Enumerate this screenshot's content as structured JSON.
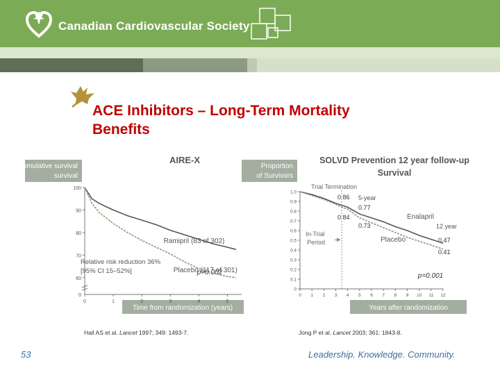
{
  "header": {
    "org_name": "Canadian Cardiovascular Society",
    "color": "#7cab56"
  },
  "slide": {
    "title_line1": "ACE Inhibitors – Long-Term Mortality",
    "title_line2": "Benefits",
    "number": "53",
    "tagline": "Leadership. Knowledge. Community."
  },
  "references": {
    "left_author": "Hall AS et al. ",
    "left_journal": "Lancet",
    "left_details": " 1997; 349: 1493-7.",
    "right_author": "Jong P et al. ",
    "right_journal": "Lancet",
    "right_details": " 2003; 361: 1843-8."
  },
  "chart_data": [
    {
      "type": "line",
      "title": "AIRE-X",
      "ylabel": "% cumulative survival",
      "xlabel": "Time from randomization (years)",
      "x_ticks": [
        0,
        1,
        2,
        3,
        4,
        5
      ],
      "y_ticks": [
        100,
        90,
        80,
        70,
        60
      ],
      "y_zero_tick": "0",
      "xlim": [
        0,
        5.5
      ],
      "ylim": [
        55,
        100
      ],
      "series": [
        {
          "name": "Ramipril (83 of 302)",
          "color": "#555555",
          "x": [
            0,
            0.25,
            0.5,
            0.75,
            1,
            1.5,
            2,
            2.5,
            3,
            3.5,
            4,
            4.5,
            5,
            5.3
          ],
          "y": [
            100,
            95,
            93,
            91.5,
            90,
            87.5,
            85.5,
            83.5,
            81,
            79,
            77,
            75,
            73.5,
            72.5
          ]
        },
        {
          "name": "Placebo (117 of 301)",
          "color": "#8a9a7a",
          "x": [
            0,
            0.25,
            0.5,
            0.75,
            1,
            1.5,
            2,
            2.5,
            3,
            3.5,
            4,
            4.5,
            5,
            5.3
          ],
          "y": [
            100,
            93,
            89,
            86.5,
            84,
            80,
            76.5,
            73.5,
            70.5,
            67,
            64,
            62,
            60.5,
            60
          ]
        }
      ],
      "annotations": {
        "rrr_line1": "Relative risk reduction 36%",
        "rrr_line2": "[95% CI 15–52%]",
        "p_value": "p=0.002"
      }
    },
    {
      "type": "line",
      "title_line1": "SOLVD Prevention 12 year follow-up",
      "title_line2": "Survival",
      "ylabel_line1": "Proportion",
      "ylabel_line2": "of Survivors",
      "xlabel": "Years after randomization",
      "x_ticks": [
        0,
        1,
        2,
        3,
        4,
        5,
        6,
        7,
        8,
        9,
        10,
        11,
        12
      ],
      "y_ticks": [
        "1.0",
        "0.9",
        "0.8",
        "0.7",
        "0.6",
        "0.5",
        "0.4",
        "0.3",
        "0.2",
        "0.1",
        "0"
      ],
      "xlim": [
        0,
        12
      ],
      "ylim": [
        0,
        1.0
      ],
      "trial_termination_year": 3.5,
      "series": [
        {
          "name": "Enalapril",
          "color": "#555555",
          "x": [
            0,
            1,
            2,
            3,
            3.5,
            4,
            5,
            6,
            7,
            8,
            9,
            10,
            11,
            12
          ],
          "y": [
            1.0,
            0.97,
            0.93,
            0.88,
            0.86,
            0.84,
            0.77,
            0.73,
            0.69,
            0.64,
            0.6,
            0.55,
            0.51,
            0.47
          ]
        },
        {
          "name": "Placebo",
          "color": "#8a9a7a",
          "x": [
            0,
            1,
            2,
            3,
            3.5,
            4,
            5,
            6,
            7,
            8,
            9,
            10,
            11,
            12
          ],
          "y": [
            1.0,
            0.96,
            0.92,
            0.87,
            0.84,
            0.82,
            0.73,
            0.68,
            0.63,
            0.58,
            0.53,
            0.49,
            0.45,
            0.41
          ]
        }
      ],
      "annotations": {
        "trial_termination": "Trial Termination",
        "five_year": "5-year",
        "twelve_year": "12 year",
        "in_trial_line1": "In-Trial",
        "in_trial_line2": "Period",
        "enalapril_label": "Enalapril",
        "placebo_label": "Placebo",
        "v_086": "0.86",
        "v_084": "0.84",
        "v_077": "0.77",
        "v_073": "0.73",
        "v_047": "0.47",
        "v_041": "0.41",
        "p_value": "p=0.001"
      }
    }
  ]
}
